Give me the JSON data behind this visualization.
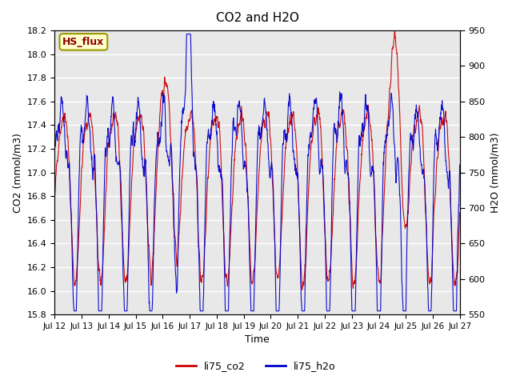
{
  "title": "CO2 and H2O",
  "xlabel": "Time",
  "ylabel_left": "CO2 (mmol/m3)",
  "ylabel_right": "H2O (mmol/m3)",
  "annotation_text": "HS_flux",
  "annotation_bg": "#FFFFCC",
  "annotation_border": "#999900",
  "co2_color": "#CC0000",
  "h2o_color": "#0000CC",
  "background_color": "#E8E8E8",
  "ylim_left": [
    15.8,
    18.2
  ],
  "ylim_right": [
    550,
    950
  ],
  "xtick_labels": [
    "Jul 12",
    "Jul 13",
    "Jul 14",
    "Jul 15",
    "Jul 16",
    "Jul 17",
    "Jul 18",
    "Jul 19",
    "Jul 20",
    "Jul 21",
    "Jul 22",
    "Jul 23",
    "Jul 24",
    "Jul 25",
    "Jul 26",
    "Jul 27"
  ],
  "legend_labels": [
    "li75_co2",
    "li75_h2o"
  ]
}
